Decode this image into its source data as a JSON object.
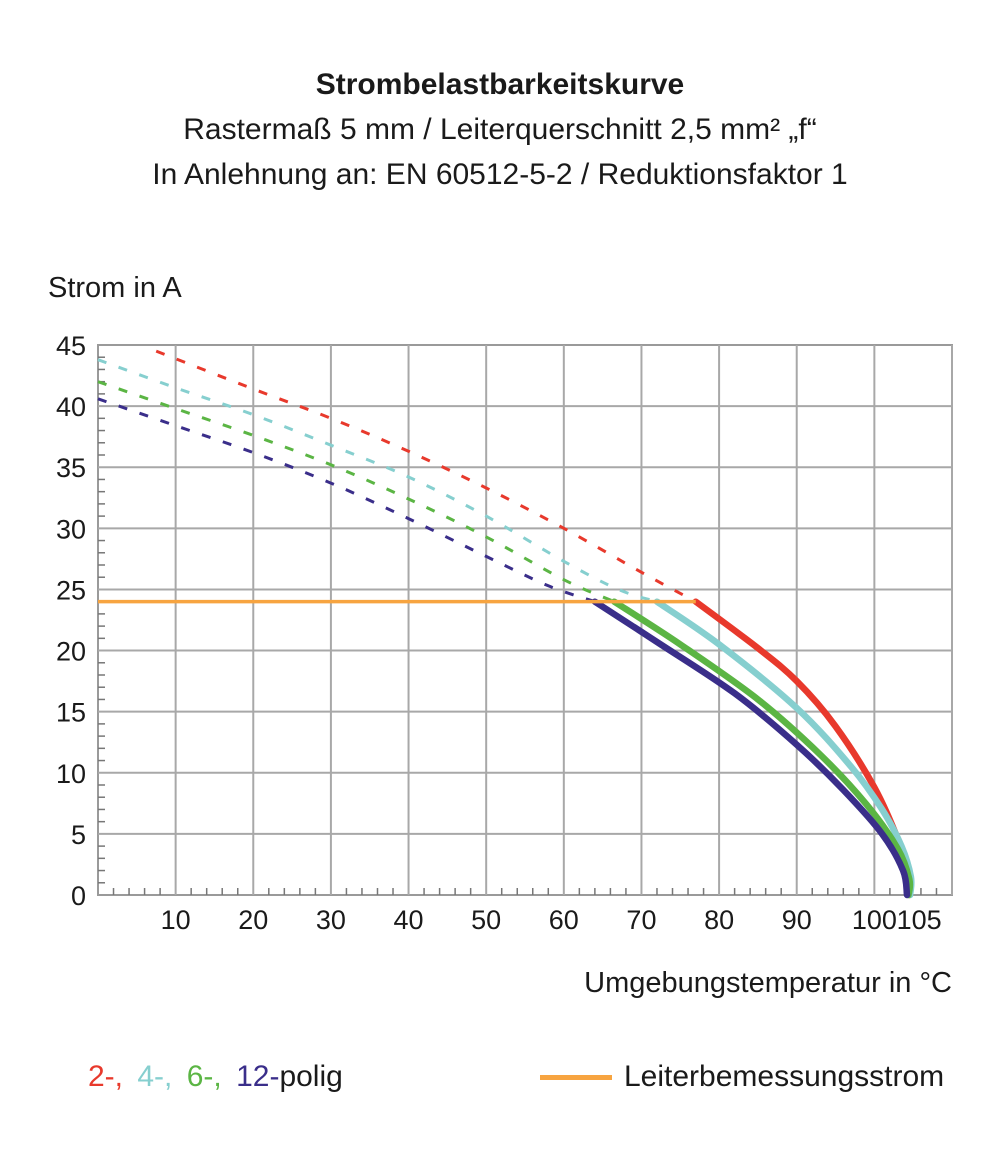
{
  "chart_data": {
    "type": "line",
    "title": "Strombelastbarkeitskurve",
    "subtitle_1": "Rastermaß 5 mm / Leiterquerschnitt 2,5 mm² „f“",
    "subtitle_2": "In Anlehnung an: EN 60512-5-2 / Reduktionsfaktor 1",
    "ylabel": "Strom in A",
    "xlabel": "Umgebungstemperatur in °C",
    "xlim": [
      0,
      110
    ],
    "ylim": [
      0,
      45
    ],
    "xticks": [
      10,
      20,
      30,
      40,
      50,
      60,
      70,
      80,
      90,
      100,
      105
    ],
    "yticks": [
      0,
      5,
      10,
      15,
      20,
      25,
      30,
      35,
      40,
      45
    ],
    "grid": true,
    "legend": {
      "poles": [
        {
          "text": "2-,",
          "color": "#e8392c"
        },
        {
          "text": "4-,",
          "color": "#86cfcf"
        },
        {
          "text": "6-,",
          "color": "#5bb544"
        },
        {
          "text": "12-",
          "color": "#3a2e8a"
        }
      ],
      "poles_suffix": "polig",
      "rated_current_label": "Leiterbemessungsstrom"
    },
    "rated_current": {
      "y": 24,
      "x_start": 0,
      "x_end": 77,
      "color": "#f7a440"
    },
    "series": [
      {
        "color": "#e8392c",
        "dashed": [
          [
            7.5,
            44.5
          ],
          [
            20,
            41.4
          ],
          [
            30,
            39
          ],
          [
            40,
            36.3
          ],
          [
            50,
            33.3
          ],
          [
            60,
            30
          ],
          [
            70,
            26.4
          ],
          [
            77,
            24
          ]
        ],
        "solid": [
          [
            77,
            24
          ],
          [
            85,
            20.2
          ],
          [
            90,
            17.5
          ],
          [
            95,
            13.8
          ],
          [
            100,
            8.8
          ],
          [
            103,
            4.6
          ],
          [
            104.5,
            1.5
          ],
          [
            104.5,
            0
          ]
        ]
      },
      {
        "color": "#86cfcf",
        "dashed": [
          [
            0,
            43.8
          ],
          [
            10,
            41.5
          ],
          [
            20,
            39.3
          ],
          [
            30,
            36.8
          ],
          [
            40,
            34.2
          ],
          [
            50,
            31
          ],
          [
            60,
            27.3
          ],
          [
            67,
            25
          ],
          [
            72,
            24
          ]
        ],
        "solid": [
          [
            72,
            24
          ],
          [
            80,
            20.5
          ],
          [
            90,
            15.3
          ],
          [
            97,
            10.5
          ],
          [
            101,
            7
          ],
          [
            103.5,
            4
          ],
          [
            104.7,
            1.5
          ],
          [
            104.6,
            0
          ]
        ]
      },
      {
        "color": "#5bb544",
        "dashed": [
          [
            0,
            42
          ],
          [
            10,
            39.8
          ],
          [
            20,
            37.6
          ],
          [
            30,
            35.2
          ],
          [
            40,
            32.4
          ],
          [
            50,
            29.3
          ],
          [
            60,
            25.8
          ],
          [
            66.5,
            24
          ]
        ],
        "solid": [
          [
            66.5,
            24
          ],
          [
            75,
            20.5
          ],
          [
            85,
            16
          ],
          [
            93,
            11.5
          ],
          [
            99,
            7.4
          ],
          [
            103,
            3.8
          ],
          [
            104.5,
            1.3
          ],
          [
            104.4,
            0
          ]
        ]
      },
      {
        "color": "#3a2e8a",
        "dashed": [
          [
            0,
            40.6
          ],
          [
            10,
            38.4
          ],
          [
            20,
            36.2
          ],
          [
            30,
            33.7
          ],
          [
            40,
            30.8
          ],
          [
            50,
            27.7
          ],
          [
            58,
            25.3
          ],
          [
            64,
            24
          ]
        ],
        "solid": [
          [
            64,
            24
          ],
          [
            72,
            20.7
          ],
          [
            82,
            16.5
          ],
          [
            90,
            12.3
          ],
          [
            96,
            8.6
          ],
          [
            101,
            5
          ],
          [
            103.7,
            2
          ],
          [
            104.2,
            0
          ]
        ]
      }
    ]
  }
}
